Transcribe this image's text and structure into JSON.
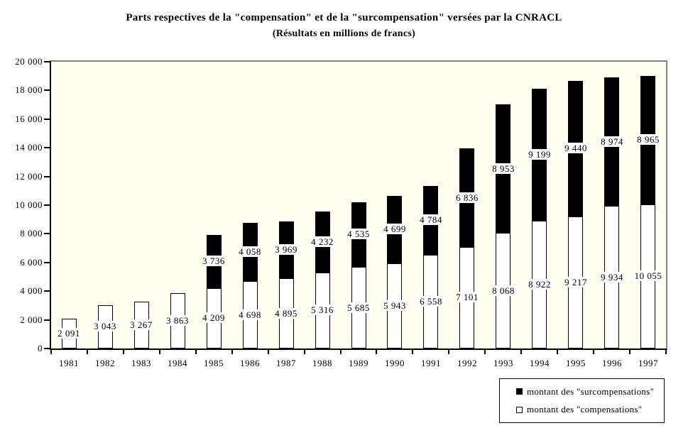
{
  "chart_data": {
    "type": "bar",
    "stacked": true,
    "title": "Parts respectives de la \"compensation\" et de la \"surcompensation\" versées par la CNRACL",
    "subtitle": "(Résultats en millions de francs)",
    "categories": [
      "1981",
      "1982",
      "1983",
      "1984",
      "1985",
      "1986",
      "1987",
      "1988",
      "1989",
      "1990",
      "1991",
      "1992",
      "1993",
      "1994",
      "1995",
      "1996",
      "1997"
    ],
    "series": [
      {
        "name": "montant des \"compensations\"",
        "color": "#FFFFFF",
        "values": [
          2091,
          3043,
          3267,
          3863,
          4209,
          4698,
          4895,
          5316,
          5685,
          5943,
          6558,
          7101,
          8068,
          8922,
          9217,
          9934,
          10055
        ],
        "labels": [
          "2 091",
          "3 043",
          "3 267",
          "3 863",
          "4 209",
          "4 698",
          "4 895",
          "5 316",
          "5 685",
          "5 943",
          "6 558",
          "7 101",
          "8 068",
          "8 922",
          "9 217",
          "9 934",
          "10 055"
        ]
      },
      {
        "name": "montant des \"surcompensations\"",
        "color": "#000000",
        "values": [
          0,
          0,
          0,
          0,
          3736,
          4058,
          3969,
          4232,
          4535,
          4699,
          4784,
          6836,
          8953,
          9199,
          9440,
          8974,
          8965
        ],
        "labels": [
          "",
          "",
          "",
          "",
          "3 736",
          "4 058",
          "3 969",
          "4 232",
          "4 535",
          "4 699",
          "4 784",
          "6 836",
          "8 953",
          "9 199",
          "9 440",
          "8 974",
          "8 965"
        ]
      }
    ],
    "y_axis": {
      "min": 0,
      "max": 20000,
      "step": 2000,
      "tick_labels": [
        "0",
        "2 000",
        "4 000",
        "6 000",
        "8 000",
        "10 000",
        "12 000",
        "14 000",
        "16 000",
        "18 000",
        "20 000"
      ]
    },
    "x_axis": {
      "label": ""
    },
    "legend": {
      "position": "bottom-right",
      "items": [
        {
          "swatch_color": "#000000",
          "label": "montant des \"surcompensations\""
        },
        {
          "swatch_color": "#FFFFFF",
          "label": "montant des \"compensations\""
        }
      ]
    },
    "grid": false,
    "plot_background": "#FFFFF0",
    "frame_gray": "#848284",
    "axis_color": "#000000",
    "label_box_background": "#FFFFFF"
  }
}
